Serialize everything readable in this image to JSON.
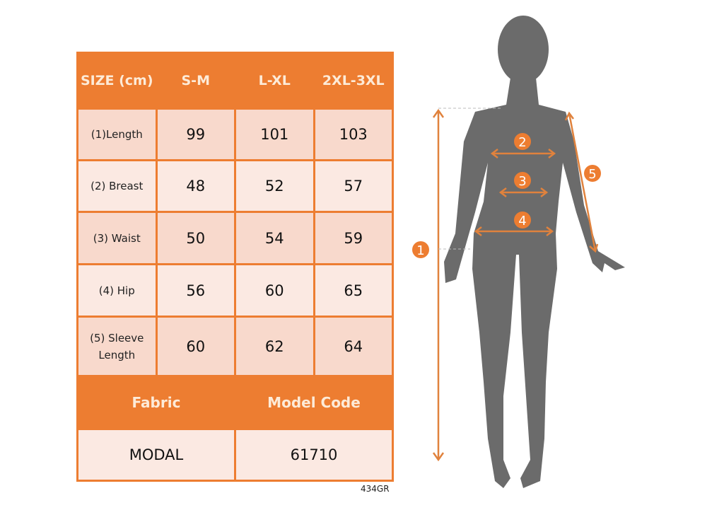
{
  "table": {
    "header": [
      "SIZE (cm)",
      "S-M",
      "L-XL",
      "2XL-3XL"
    ],
    "rows": [
      {
        "label": "(1)Length",
        "values": [
          "99",
          "101",
          "103"
        ]
      },
      {
        "label": "(2) Breast",
        "values": [
          "48",
          "52",
          "57"
        ]
      },
      {
        "label": "(3) Waist",
        "values": [
          "50",
          "54",
          "59"
        ]
      },
      {
        "label": "(4) Hip",
        "values": [
          "56",
          "60",
          "65"
        ]
      },
      {
        "label": "(5) Sleeve Length",
        "values": [
          "60",
          "62",
          "64"
        ]
      }
    ],
    "footer_headers": [
      "Fabric",
      "Model Code"
    ],
    "footer_values": [
      "MODAL",
      "61710"
    ]
  },
  "product_code": "434GR",
  "figure": {
    "markers": [
      "1",
      "2",
      "3",
      "4",
      "5"
    ]
  },
  "colors": {
    "accent": "#ED7D31",
    "row_dark": "#F8D9CC",
    "row_light": "#FBE9E2",
    "silhouette": "#6B6B6B"
  }
}
